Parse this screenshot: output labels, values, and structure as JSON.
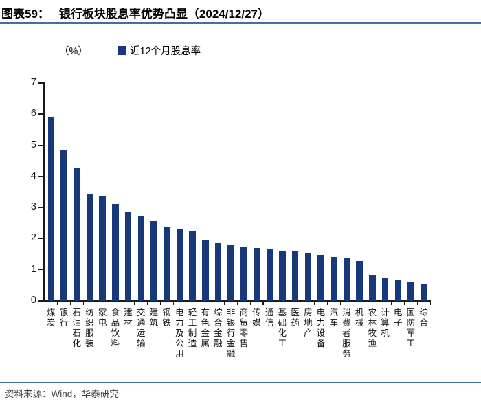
{
  "header": {
    "figure_label": "图表59：",
    "title": "银行板块股息率优势凸显（2024/12/27）"
  },
  "chart_data": {
    "type": "bar",
    "title": "近12个月股息率",
    "unit_label": "（%）",
    "legend": "近12个月股息率",
    "legend_position": "top",
    "grid": false,
    "ylim": [
      0,
      7
    ],
    "yticks": [
      0,
      1,
      2,
      3,
      4,
      5,
      6,
      7
    ],
    "categories": [
      "煤炭",
      "银行",
      "石油石化",
      "纺织服装",
      "家电",
      "食品饮料",
      "建材",
      "交通运输",
      "建筑",
      "钢铁",
      "电力及公用",
      "轻工制造",
      "有色金属",
      "综合金融",
      "非银行金融",
      "商贸零售",
      "传媒",
      "通信",
      "基础化工",
      "医药",
      "房地产",
      "电力设备",
      "汽车",
      "消费者服务",
      "机械",
      "农林牧渔",
      "计算机",
      "电子",
      "国防军工",
      "综合"
    ],
    "values": [
      5.9,
      4.83,
      4.28,
      3.44,
      3.35,
      3.12,
      2.87,
      2.72,
      2.59,
      2.36,
      2.29,
      2.25,
      1.94,
      1.86,
      1.81,
      1.74,
      1.69,
      1.68,
      1.62,
      1.6,
      1.52,
      1.48,
      1.41,
      1.38,
      1.27,
      0.81,
      0.74,
      0.67,
      0.59,
      0.53
    ]
  },
  "footer": {
    "source": "资料来源：Wind，华泰研究"
  },
  "colors": {
    "bar": "#17397B",
    "accent_line": "#476CA1"
  }
}
